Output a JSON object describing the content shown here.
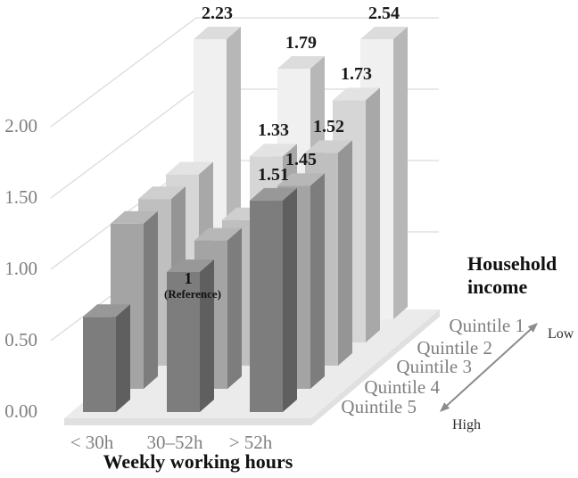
{
  "chart_data": {
    "type": "bar",
    "subtype": "3d-grouped-columns-grayscale",
    "title": "",
    "categories": [
      "< 30h",
      "30–52h",
      "> 52h"
    ],
    "xlabel": "Weekly working hours",
    "depth_label": "Household income",
    "ylim": [
      0,
      2.0
    ],
    "yticks": [
      "2.00",
      "1.50",
      "1.00",
      "0.50",
      "0.00"
    ],
    "grid": true,
    "legend_position": "none",
    "series_order": "back-to-front",
    "series": [
      {
        "name": "Quintile 1",
        "values": [
          2.23,
          1.79,
          2.54
        ],
        "labels": [
          "2.23",
          "1.79",
          "2.54"
        ]
      },
      {
        "name": "Quintile 2",
        "values": [
          1.2,
          1.33,
          1.73
        ],
        "labels": [
          null,
          "1.33",
          "1.73"
        ]
      },
      {
        "name": "Quintile 3",
        "values": [
          1.19,
          1.04,
          1.52
        ],
        "labels": [
          null,
          null,
          "1.52"
        ]
      },
      {
        "name": "Quintile 4",
        "values": [
          1.18,
          1.06,
          1.45
        ],
        "labels": [
          null,
          null,
          "1.45"
        ]
      },
      {
        "name": "Quintile 5",
        "values": [
          0.68,
          1.0,
          1.51
        ],
        "labels": [
          null,
          "1",
          "1.51"
        ],
        "reference_index": 1
      }
    ],
    "annotations": {
      "reference_note": "(Reference)",
      "low": "Low",
      "high": "High"
    },
    "series_colors": [
      {
        "front": "#f0f0f0",
        "side": "#b7b7b7",
        "top": "#dcdcdc"
      },
      {
        "front": "#d6d6d6",
        "side": "#a8a8a8",
        "top": "#e3e3e3"
      },
      {
        "front": "#bfbfbf",
        "side": "#959595",
        "top": "#cfcfcf"
      },
      {
        "front": "#a4a4a4",
        "side": "#7d7d7d",
        "top": "#b7b7b7"
      },
      {
        "front": "#7d7d7d",
        "side": "#5f5f5f",
        "top": "#989898"
      }
    ],
    "style_colors": {
      "gridline": "#d9d9d9",
      "floor": "#ebebeb",
      "floor_edge": "#e0e0e0",
      "axis_text": "#7f7f7f",
      "label_text": "#1a1a1a",
      "arrow": "#8c8c8c",
      "background": "#ffffff"
    }
  }
}
